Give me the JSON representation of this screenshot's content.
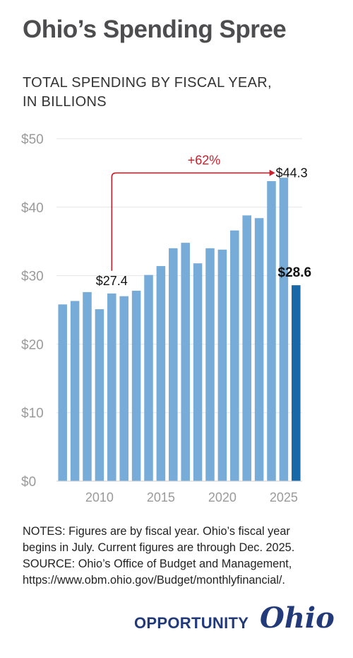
{
  "title": "Ohio’s Spending Spree",
  "subtitle_lines": [
    "TOTAL SPENDING BY FISCAL YEAR,",
    "IN BILLIONS"
  ],
  "notes_lines": [
    "NOTES: Figures are by fiscal year. Ohio’s fiscal year",
    "begins in July. Current figures are through Dec. 2025.",
    "SOURCE: Ohio’s Office of Budget and Management,",
    "https://www.obm.ohio.gov/Budget/monthlyfinancial/."
  ],
  "logo": {
    "word": "OPPORTUNITY",
    "script": "Ohio"
  },
  "chart_data": {
    "type": "bar",
    "title": "",
    "xlabel": "",
    "ylabel": "",
    "x": [
      2007,
      2008,
      2009,
      2010,
      2011,
      2012,
      2013,
      2014,
      2015,
      2016,
      2017,
      2018,
      2019,
      2020,
      2021,
      2022,
      2023,
      2024,
      2025,
      2026
    ],
    "values": [
      25.8,
      26.3,
      27.6,
      25.1,
      27.4,
      27.0,
      27.8,
      30.1,
      31.4,
      34.0,
      34.8,
      31.8,
      34.0,
      33.8,
      36.6,
      38.8,
      38.4,
      43.8,
      44.3,
      28.6
    ],
    "ylim": [
      0,
      50
    ],
    "yticks": [
      0,
      10,
      20,
      30,
      40,
      50
    ],
    "ytick_labels": [
      "$0",
      "$10",
      "$20",
      "$30",
      "$40",
      "$50"
    ],
    "xticks": [
      2010,
      2015,
      2020,
      2025
    ],
    "xtick_labels": [
      "2010",
      "2015",
      "2020",
      "2025"
    ],
    "grid": true,
    "colors": {
      "bar": "#78acd8",
      "highlight": "#1868a8",
      "arrow": "#c8202c",
      "grid": "#e6e6e6",
      "tick": "#9a9a9a"
    },
    "highlight_index": 19,
    "annotations": {
      "start_label": "$27.4",
      "end_label": "$44.3",
      "current_label": "$28.6",
      "change_label": "+62%",
      "start_index": 4,
      "end_index": 18
    }
  }
}
